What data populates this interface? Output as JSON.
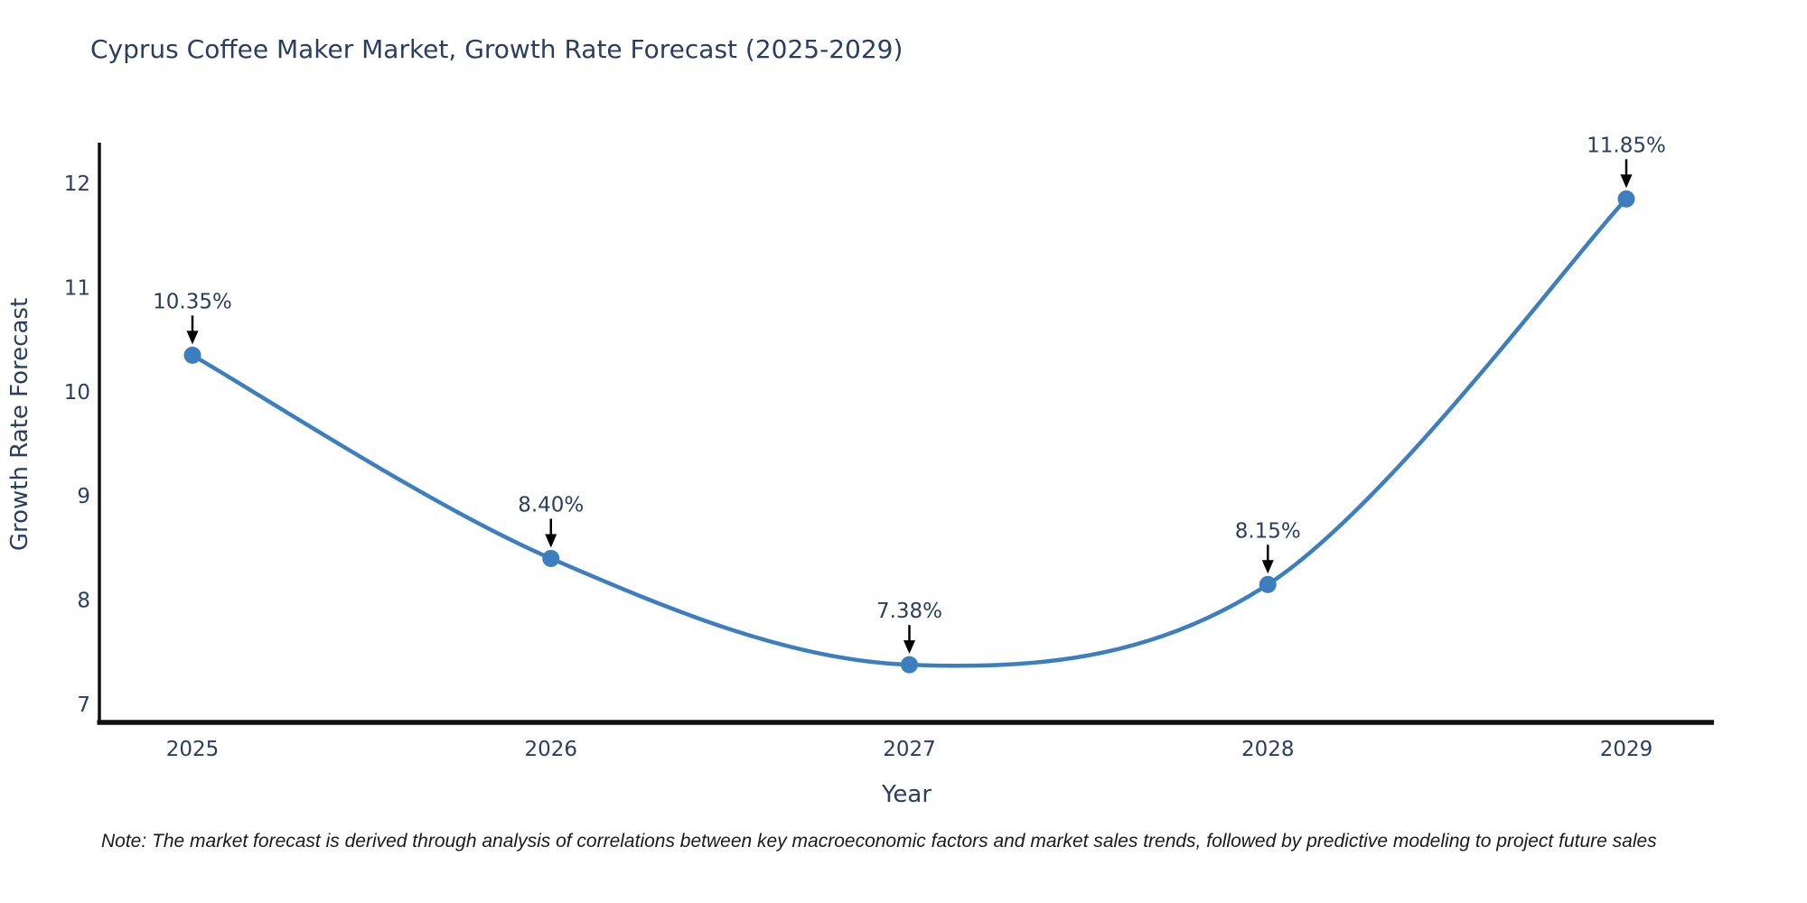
{
  "title": "Cyprus Coffee Maker Market, Growth Rate Forecast (2025-2029)",
  "note": "Note: The market forecast is derived through analysis of correlations between key macroeconomic factors and market sales trends, followed by predictive modeling to project future sales",
  "chart_data": {
    "type": "line",
    "title": "Cyprus Coffee Maker Market, Growth Rate Forecast (2025-2029)",
    "xlabel": "Year",
    "ylabel": "Growth Rate Forecast",
    "categories": [
      "2025",
      "2026",
      "2027",
      "2028",
      "2029"
    ],
    "values": [
      10.35,
      8.4,
      7.38,
      8.15,
      11.85
    ],
    "point_labels": [
      "10.35%",
      "8.40%",
      "7.38%",
      "8.15%",
      "11.85%"
    ],
    "yticks": [
      7,
      8,
      9,
      10,
      11,
      12
    ],
    "ylim": [
      6.8,
      12.4
    ],
    "line_shape": "spline",
    "grid": false,
    "legend_position": "none",
    "colors": {
      "line": "#3d7ebf",
      "marker": "#3d7ebf",
      "text": "#2a3f5f",
      "axis_line": "#111111",
      "annotation_text": "#2a3f5f",
      "annotation_arrow": "#000000",
      "background": "#ffffff"
    }
  }
}
